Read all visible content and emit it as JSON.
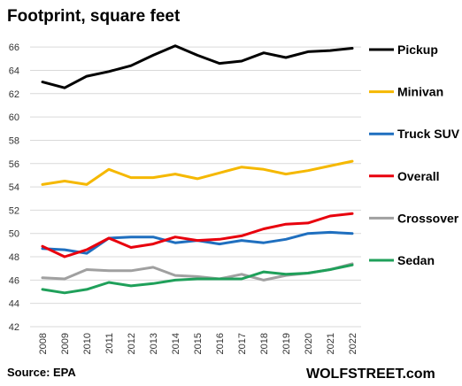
{
  "chart_data": {
    "type": "line",
    "title": "Footprint, square feet",
    "xlabel": "",
    "ylabel": "",
    "x": [
      "2008",
      "2009",
      "2010",
      "2011",
      "2012",
      "2013",
      "2014",
      "2015",
      "2016",
      "2017",
      "2018",
      "2019",
      "2020",
      "2021",
      "2022"
    ],
    "ylim": [
      42,
      67
    ],
    "yticks": [
      42,
      44,
      46,
      48,
      50,
      52,
      54,
      56,
      58,
      60,
      62,
      64,
      66
    ],
    "grid": "horizontal",
    "legend": "right, at line ends",
    "series": [
      {
        "name": "Pickup",
        "color": "#000000",
        "values": [
          63.0,
          62.5,
          63.5,
          63.9,
          64.4,
          65.3,
          66.1,
          65.3,
          64.6,
          64.8,
          65.5,
          65.1,
          65.6,
          65.7,
          65.9
        ]
      },
      {
        "name": "Minivan",
        "color": "#f5b800",
        "values": [
          54.2,
          54.5,
          54.2,
          55.5,
          54.8,
          54.8,
          55.1,
          54.7,
          55.2,
          55.7,
          55.5,
          55.1,
          55.4,
          55.8,
          56.2
        ]
      },
      {
        "name": "Truck SUV",
        "color": "#1f6fbf",
        "values": [
          48.7,
          48.6,
          48.3,
          49.6,
          49.7,
          49.7,
          49.2,
          49.4,
          49.1,
          49.4,
          49.2,
          49.5,
          50.0,
          50.1,
          50.0
        ]
      },
      {
        "name": "Overall",
        "color": "#e8000d",
        "values": [
          48.9,
          48.0,
          48.6,
          49.6,
          48.8,
          49.1,
          49.7,
          49.4,
          49.5,
          49.8,
          50.4,
          50.8,
          50.9,
          51.5,
          51.7
        ]
      },
      {
        "name": "Crossover",
        "color": "#a0a0a0",
        "values": [
          46.2,
          46.1,
          46.9,
          46.8,
          46.8,
          47.1,
          46.4,
          46.3,
          46.1,
          46.5,
          46.0,
          46.4,
          46.6,
          46.9,
          47.4
        ]
      },
      {
        "name": "Sedan",
        "color": "#1fa05a",
        "values": [
          45.2,
          44.9,
          45.2,
          45.8,
          45.5,
          45.7,
          46.0,
          46.1,
          46.1,
          46.1,
          46.7,
          46.5,
          46.6,
          46.9,
          47.3
        ]
      }
    ]
  },
  "footer": {
    "source": "Source: EPA",
    "brand": "WOLFSTREET.com"
  }
}
